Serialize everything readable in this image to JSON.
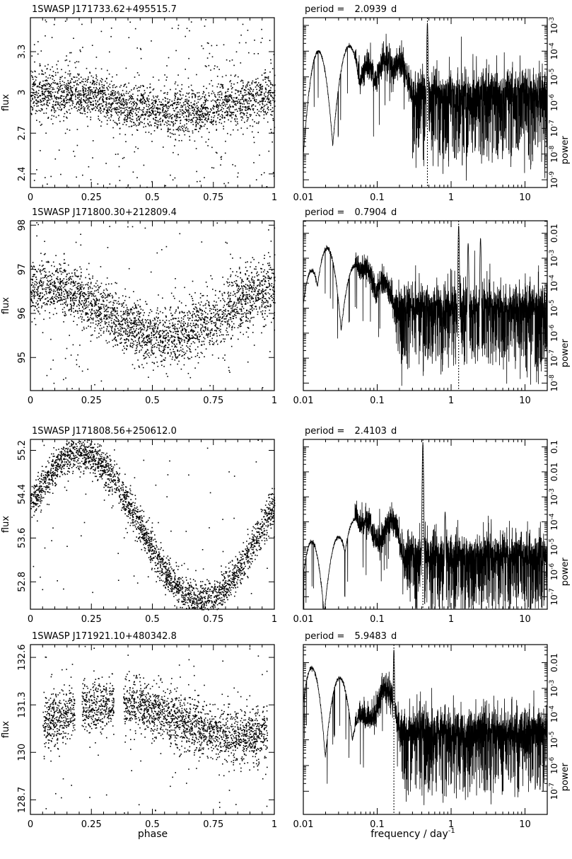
{
  "figure": {
    "x_axis_label_phase": "phase",
    "x_axis_label_frequency": "frequency / day",
    "x_axis_label_frequency_exponent": "-1",
    "y_axis_label_flux": "flux",
    "y_axis_label_power": "power",
    "period_prefix": "period =",
    "period_unit": "d"
  },
  "chart_data": [
    {
      "type": "scatter",
      "star": "1SWASP J171733.62+495515.7",
      "xlabel": "",
      "ylabel": "flux",
      "xlim": [
        0,
        1
      ],
      "ylim": [
        2.3,
        3.55
      ],
      "xticks": [
        "0",
        "0.25",
        "0.5",
        "0.75",
        "1"
      ],
      "xtick_values": [
        0,
        0.25,
        0.5,
        0.75,
        1
      ],
      "yticks": [
        "2.4",
        "2.7",
        "3",
        "3.3"
      ],
      "ytick_values": [
        2.4,
        2.7,
        3.0,
        3.3
      ],
      "lightcurve": {
        "mean": 2.93,
        "amp": 0.07,
        "phase0": 0.1,
        "shape": "sine",
        "noise": 0.14,
        "outlier_frac": 0.12,
        "gaps": [],
        "npoints": 2600
      },
      "periodogram": {
        "type": "line",
        "period_label": "2.0939",
        "peak_frequency": 0.4776,
        "xscale": "log",
        "yscale": "log",
        "xlim": [
          0.01,
          20
        ],
        "xticks": [
          "0.01",
          "0.1",
          "1",
          "10"
        ],
        "xtick_values": [
          0.01,
          0.1,
          1,
          10
        ],
        "ylim_exp": [
          -9.3,
          -2.7
        ],
        "ytick_exps": [
          -9,
          -8,
          -7,
          -6,
          -5,
          -4,
          -3
        ],
        "ytick_labels": [
          "10^-9",
          "10^-8",
          "10^-7",
          "10^-6",
          "10^-5",
          "10^-4",
          "10^-3"
        ],
        "lowfreq_bumps": [
          [
            0.016,
            -4.0
          ],
          [
            0.042,
            -3.8
          ],
          [
            0.075,
            -4.6
          ],
          [
            0.13,
            -4.3
          ],
          [
            0.2,
            -4.5
          ]
        ],
        "noise_level_exp": -5.6,
        "noise_spread": 1.2,
        "extra_peaks": [
          [
            0.4776,
            -2.9
          ]
        ]
      }
    },
    {
      "type": "scatter",
      "star": "1SWASP J171800.30+212809.4",
      "xlabel": "",
      "ylabel": "flux",
      "xlim": [
        0,
        1
      ],
      "ylim": [
        94.25,
        98.1
      ],
      "xticks": [
        "0",
        "0.25",
        "0.5",
        "0.75",
        "1"
      ],
      "xtick_values": [
        0,
        0.25,
        0.5,
        0.75,
        1
      ],
      "yticks": [
        "95",
        "96",
        "97",
        "98"
      ],
      "ytick_values": [
        95,
        96,
        97,
        98
      ],
      "lightcurve": {
        "mean": 96.05,
        "amp": 0.55,
        "phase0": 0.05,
        "shape": "sine",
        "noise": 0.55,
        "outlier_frac": 0.05,
        "gaps": [],
        "npoints": 2800
      },
      "periodogram": {
        "type": "line",
        "period_label": "0.7904",
        "peak_frequency": 1.2652,
        "xscale": "log",
        "yscale": "log",
        "xlim": [
          0.01,
          20
        ],
        "xticks": [
          "0.01",
          "0.1",
          "1",
          "10"
        ],
        "xtick_values": [
          0.01,
          0.1,
          1,
          10
        ],
        "ylim_exp": [
          -8.3,
          -1.5
        ],
        "ytick_exps": [
          -8,
          -7,
          -6,
          -5,
          -4,
          -3,
          -2
        ],
        "ytick_labels": [
          "10^-8",
          "10^-7",
          "10^-6",
          "10^-5",
          "10^-4",
          "10^-3",
          "0.01"
        ],
        "lowfreq_bumps": [
          [
            0.013,
            -3.5
          ],
          [
            0.021,
            -2.6
          ],
          [
            0.05,
            -3.3
          ],
          [
            0.07,
            -3.4
          ],
          [
            0.12,
            -3.9
          ]
        ],
        "noise_level_exp": -4.9,
        "noise_spread": 1.1,
        "extra_peaks": [
          [
            1.2652,
            -1.7
          ],
          [
            1.7,
            -2.4
          ],
          [
            2.5,
            -2.2
          ]
        ]
      }
    },
    {
      "type": "scatter",
      "star": "1SWASP J171808.56+250612.0",
      "xlabel": "",
      "ylabel": "flux",
      "xlim": [
        0,
        1
      ],
      "ylim": [
        52.3,
        55.4
      ],
      "xticks": [
        "0",
        "0.25",
        "0.5",
        "0.75",
        "1"
      ],
      "xtick_values": [
        0,
        0.25,
        0.5,
        0.75,
        1
      ],
      "yticks": [
        "52.8",
        "53.6",
        "54.4",
        "55.2"
      ],
      "ytick_values": [
        52.8,
        53.6,
        54.4,
        55.2
      ],
      "lightcurve": {
        "mean": 53.8,
        "amp": 1.35,
        "phase0": 0.2,
        "shape": "sine",
        "noise": 0.28,
        "outlier_frac": 0.03,
        "gaps": [],
        "npoints": 2600
      },
      "periodogram": {
        "type": "line",
        "period_label": "2.4103",
        "peak_frequency": 0.4149,
        "xscale": "log",
        "yscale": "log",
        "xlim": [
          0.01,
          20
        ],
        "xticks": [
          "0.01",
          "0.1",
          "1",
          "10"
        ],
        "xtick_values": [
          0.01,
          0.1,
          1,
          10
        ],
        "ylim_exp": [
          -7.5,
          -0.7
        ],
        "ytick_exps": [
          -7,
          -6,
          -5,
          -4,
          -3,
          -2,
          -1
        ],
        "ytick_labels": [
          "10^-7",
          "10^-6",
          "10^-5",
          "10^-4",
          "10^-3",
          "0.01",
          "0.1"
        ],
        "lowfreq_bumps": [
          [
            0.013,
            -4.8
          ],
          [
            0.03,
            -4.6
          ],
          [
            0.05,
            -3.9
          ],
          [
            0.07,
            -3.9
          ],
          [
            0.09,
            -4.6
          ],
          [
            0.15,
            -3.9
          ]
        ],
        "noise_level_exp": -5.3,
        "noise_spread": 1.0,
        "extra_peaks": [
          [
            0.4149,
            -0.85
          ],
          [
            0.8298,
            -3.6
          ]
        ]
      }
    },
    {
      "type": "scatter",
      "star": "1SWASP J171921.10+480342.8",
      "xlabel": "",
      "ylabel": "flux",
      "xlim": [
        0,
        1
      ],
      "ylim": [
        128.3,
        132.95
      ],
      "xticks": [
        "0",
        "0.25",
        "0.5",
        "0.75",
        "1"
      ],
      "xtick_values": [
        0,
        0.25,
        0.5,
        0.75,
        1
      ],
      "yticks": [
        "128.7",
        "130",
        "131.3",
        "132.6"
      ],
      "ytick_values": [
        128.7,
        130.0,
        131.3,
        132.6
      ],
      "lightcurve": {
        "mean": 130.9,
        "amp": 0.45,
        "phase0": 0.35,
        "shape": "sine",
        "noise": 0.6,
        "outlier_frac": 0.04,
        "gaps": [
          [
            0.0,
            0.05
          ],
          [
            0.18,
            0.21
          ],
          [
            0.34,
            0.38
          ],
          [
            0.97,
            1.0
          ]
        ],
        "npoints": 2500
      },
      "periodogram": {
        "type": "line",
        "period_label": "5.9483",
        "peak_frequency": 0.1681,
        "xscale": "log",
        "yscale": "log",
        "xlim": [
          0.01,
          20
        ],
        "xticks": [
          "0.01",
          "0.1",
          "1",
          "10"
        ],
        "xtick_values": [
          0.01,
          0.1,
          1,
          10
        ],
        "ylim_exp": [
          -7.9,
          -1.3
        ],
        "ytick_exps": [
          -7,
          -6,
          -5,
          -4,
          -3,
          -2
        ],
        "ytick_labels": [
          "10^-7",
          "10^-6",
          "10^-5",
          "10^-4",
          "10^-3",
          "0.01"
        ],
        "lowfreq_bumps": [
          [
            0.013,
            -2.2
          ],
          [
            0.031,
            -2.6
          ],
          [
            0.06,
            -4.1
          ],
          [
            0.075,
            -4.2
          ],
          [
            0.095,
            -4.0
          ],
          [
            0.13,
            -3.0
          ]
        ],
        "noise_level_exp": -4.6,
        "noise_spread": 1.1,
        "extra_peaks": [
          [
            0.1681,
            -1.5
          ]
        ]
      }
    }
  ]
}
